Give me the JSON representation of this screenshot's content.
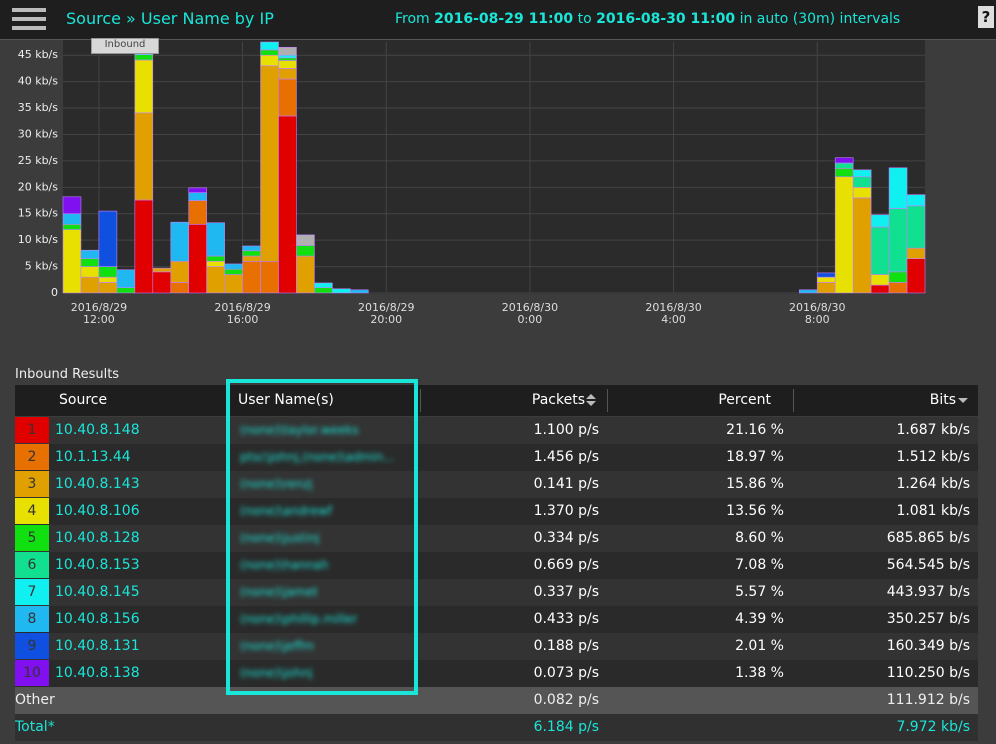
{
  "header": {
    "title": "Source » User Name by IP",
    "range": {
      "from_label": "From",
      "start": "2016-08-29 11:00",
      "to_label": "to",
      "end": "2016-08-30 11:00",
      "interval": "in auto (30m) intervals"
    },
    "help": "?"
  },
  "chart_data": {
    "type": "bar",
    "stacked": true,
    "tooltip": "Inbound",
    "categories": [
      null,
      null,
      "2016/8/29\n12:00",
      null,
      null,
      null,
      null,
      null,
      null,
      null,
      "2016/8/29\n16:00",
      null,
      null,
      null,
      null,
      null,
      null,
      null,
      "2016/8/29\n20:00",
      null,
      null,
      null,
      null,
      null,
      null,
      null,
      "2016/8/30\n0:00",
      null,
      null,
      null,
      null,
      null,
      null,
      null,
      "2016/8/30\n4:00",
      null,
      null,
      null,
      null,
      null,
      null,
      null,
      "2016/8/30\n8:00",
      null,
      null,
      null,
      null,
      null
    ],
    "ylim": [
      0,
      47.5
    ],
    "yticks": [
      0,
      {
        "value": 5,
        "label": "5 kb/s"
      },
      {
        "value": 10,
        "label": "10 kb/s"
      },
      {
        "value": 15,
        "label": "15 kb/s"
      },
      {
        "value": 20,
        "label": "20 kb/s"
      },
      {
        "value": 25,
        "label": "25 kb/s"
      },
      {
        "value": 30,
        "label": "30 kb/s"
      },
      {
        "value": 35,
        "label": "35 kb/s"
      },
      {
        "value": 40,
        "label": "40 kb/s"
      },
      {
        "value": 45,
        "label": "45 kb/s"
      }
    ],
    "grid": true,
    "series": [
      {
        "color": "#e00000",
        "values": [
          0,
          0,
          0,
          0,
          17.6,
          4,
          0,
          13,
          0,
          0,
          0,
          0,
          33.5,
          0,
          0,
          0,
          0,
          0,
          0,
          0,
          0,
          0,
          0,
          0,
          0,
          0,
          0,
          0,
          0,
          0,
          0,
          0,
          0,
          0,
          0,
          0,
          0,
          0,
          0,
          0,
          0,
          0,
          0,
          0,
          0,
          1.5,
          0,
          6.5
        ]
      },
      {
        "color": "#e87000",
        "values": [
          0,
          0,
          0,
          0,
          0,
          0,
          2,
          4.5,
          0,
          0,
          6,
          6,
          7,
          0,
          0,
          0,
          0,
          0,
          0,
          0,
          0,
          0,
          0,
          0,
          0,
          0,
          0,
          0,
          0,
          0,
          0,
          0,
          0,
          0,
          0,
          0,
          0,
          0,
          0,
          0,
          0,
          0,
          0,
          0,
          0,
          0,
          2,
          0
        ]
      },
      {
        "color": "#e0a000",
        "values": [
          0,
          3,
          2,
          0,
          16.5,
          0.7,
          4,
          0,
          5,
          3.5,
          1,
          37,
          2,
          7,
          0,
          0,
          0,
          0,
          0,
          0,
          0,
          0,
          0,
          0,
          0,
          0,
          0,
          0,
          0,
          0,
          0,
          0,
          0,
          0,
          0,
          0,
          0,
          0,
          0,
          0,
          0,
          0,
          2,
          0,
          18,
          0,
          0,
          2
        ]
      },
      {
        "color": "#e8e000",
        "values": [
          12,
          2,
          1,
          0,
          10,
          0,
          0,
          0,
          1,
          0,
          0,
          2,
          1.5,
          0,
          0,
          0,
          0,
          0,
          0,
          0,
          0,
          0,
          0,
          0,
          0,
          0,
          0,
          0,
          0,
          0,
          0,
          0,
          0,
          0,
          0,
          0,
          0,
          0,
          0,
          0,
          0,
          0,
          1,
          22,
          2,
          2,
          0,
          0
        ]
      },
      {
        "color": "#10e010",
        "values": [
          1,
          1.5,
          2,
          1,
          1,
          0,
          0,
          0,
          1,
          1,
          1,
          1,
          0.5,
          2,
          1,
          0,
          0,
          0,
          0,
          0,
          0,
          0,
          0,
          0,
          0,
          0,
          0,
          0,
          0,
          0,
          0,
          0,
          0,
          0,
          0,
          0,
          0,
          0,
          0,
          0,
          0,
          0,
          0,
          1.6,
          0,
          0,
          2,
          0
        ]
      },
      {
        "color": "#10e090",
        "values": [
          0,
          0,
          0,
          0,
          0,
          0,
          0,
          0,
          0,
          0,
          0,
          0,
          0,
          0,
          0,
          0,
          0,
          0,
          0,
          0,
          0,
          0,
          0,
          0,
          0,
          0,
          0,
          0,
          0,
          0,
          0,
          0,
          0,
          0,
          0,
          0,
          0,
          0,
          0,
          0,
          0,
          0,
          0,
          1,
          2,
          9,
          12,
          8
        ]
      },
      {
        "color": "#10f0f0",
        "values": [
          0,
          0,
          0,
          0,
          1,
          0,
          0,
          0,
          0,
          0,
          0,
          1.5,
          0.5,
          0,
          0.9,
          0.8,
          0,
          0,
          0,
          0,
          0,
          0,
          0,
          0,
          0,
          0,
          0,
          0,
          0,
          0,
          0,
          0,
          0,
          0,
          0,
          0,
          0,
          0,
          0,
          0,
          0,
          0,
          0,
          0,
          1.3,
          2.3,
          7.7,
          2.1
        ]
      },
      {
        "color": "#20b8f0",
        "values": [
          2,
          1.6,
          0,
          3.4,
          0,
          0,
          7.4,
          1.5,
          6.3,
          1,
          0.9,
          0,
          0,
          0,
          0,
          0,
          0.6,
          0,
          0,
          0,
          0,
          0,
          0,
          0,
          0,
          0,
          0,
          0,
          0,
          0,
          0,
          0,
          0,
          0,
          0,
          0,
          0,
          0,
          0,
          0,
          0,
          0.6,
          0,
          0,
          0,
          0,
          0,
          0
        ]
      },
      {
        "color": "#1050e0",
        "values": [
          0,
          0,
          10.5,
          0,
          0,
          0,
          0,
          0,
          0,
          0,
          0,
          0,
          0,
          0,
          0,
          0,
          0,
          0,
          0,
          0,
          0,
          0,
          0,
          0,
          0,
          0,
          0,
          0,
          0,
          0,
          0,
          0,
          0,
          0,
          0,
          0,
          0,
          0,
          0,
          0,
          0,
          0,
          0.8,
          0,
          0,
          0,
          0,
          0
        ]
      },
      {
        "color": "#8010f0",
        "values": [
          3.2,
          0,
          0,
          0,
          0,
          0,
          0,
          0.9,
          0,
          0,
          0,
          0,
          0,
          0,
          0,
          0,
          0,
          0,
          0,
          0,
          0,
          0,
          0,
          0,
          0,
          0,
          0,
          0,
          0,
          0,
          0,
          0,
          0,
          0,
          0,
          0,
          0,
          0,
          0,
          0,
          0,
          0,
          0,
          1,
          0,
          0,
          0,
          0
        ]
      },
      {
        "color": "#b0b0b0",
        "values": [
          0,
          0,
          0,
          0,
          1.4,
          0,
          0,
          0,
          0,
          0,
          0,
          0,
          1.5,
          2,
          0,
          0,
          0,
          0,
          0,
          0,
          0,
          0,
          0,
          0,
          0,
          0,
          0,
          0,
          0,
          0,
          0,
          0,
          0,
          0,
          0,
          0,
          0,
          0,
          0,
          0,
          0,
          0,
          0,
          0,
          0,
          0,
          0,
          0
        ]
      }
    ]
  },
  "table": {
    "title": "Inbound Results",
    "columns": [
      "Source",
      "User Name(s)",
      "Packets",
      "Percent",
      "Bits"
    ],
    "rows": [
      {
        "rank": "1",
        "color": "#e00000",
        "source": "10.40.8.148",
        "user": "(none)\\taylor.weeks",
        "packets": "1.100 p/s",
        "percent": "21.16 %",
        "bits": "1.687 kb/s"
      },
      {
        "rank": "2",
        "color": "#e87000",
        "source": "10.1.13.44",
        "user": "ptsc\\johnj,(none)\\admin...",
        "packets": "1.456 p/s",
        "percent": "18.97 %",
        "bits": "1.512 kb/s"
      },
      {
        "rank": "3",
        "color": "#e0a000",
        "source": "10.40.8.143",
        "user": "(none)\\renzj",
        "packets": "0.141 p/s",
        "percent": "15.86 %",
        "bits": "1.264 kb/s"
      },
      {
        "rank": "4",
        "color": "#e8e000",
        "source": "10.40.8.106",
        "user": "(none)\\andrewf",
        "packets": "1.370 p/s",
        "percent": "13.56 %",
        "bits": "1.081 kb/s"
      },
      {
        "rank": "5",
        "color": "#10e010",
        "source": "10.40.8.128",
        "user": "(none)\\justinj",
        "packets": "0.334 p/s",
        "percent": "8.60 %",
        "bits": "685.865 b/s"
      },
      {
        "rank": "6",
        "color": "#10e090",
        "source": "10.40.8.153",
        "user": "(none)\\hannah",
        "packets": "0.669 p/s",
        "percent": "7.08 %",
        "bits": "564.545 b/s"
      },
      {
        "rank": "7",
        "color": "#10f0f0",
        "source": "10.40.8.145",
        "user": "(none)\\jamet",
        "packets": "0.337 p/s",
        "percent": "5.57 %",
        "bits": "443.937 b/s"
      },
      {
        "rank": "8",
        "color": "#20b8f0",
        "source": "10.40.8.156",
        "user": "(none)\\phillip.miller",
        "packets": "0.433 p/s",
        "percent": "4.39 %",
        "bits": "350.257 b/s"
      },
      {
        "rank": "9",
        "color": "#1050e0",
        "source": "10.40.8.131",
        "user": "(none)\\jeffm",
        "packets": "0.188 p/s",
        "percent": "2.01 %",
        "bits": "160.349 b/s"
      },
      {
        "rank": "10",
        "color": "#8010f0",
        "source": "10.40.8.138",
        "user": "(none)\\johnj",
        "packets": "0.073 p/s",
        "percent": "1.38 %",
        "bits": "110.250 b/s"
      }
    ],
    "other": {
      "label": "Other",
      "packets": "0.082 p/s",
      "bits": "111.912 b/s"
    },
    "total": {
      "label": "Total*",
      "packets": "6.184 p/s",
      "bits": "7.972 kb/s"
    }
  }
}
